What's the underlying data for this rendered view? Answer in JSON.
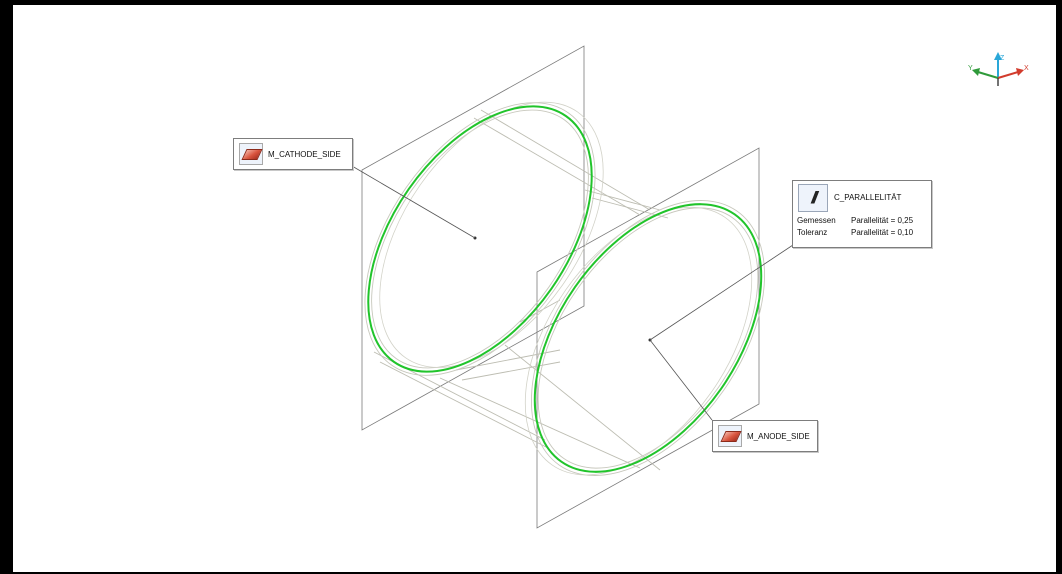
{
  "labels": {
    "cathode": "M_CATHODE_SIDE",
    "anode": "M_ANODE_SIDE",
    "constraint": {
      "name": "C_PARALLELITÄT",
      "rows": [
        {
          "key": "Gemessen",
          "value": "Parallelität = 0,25"
        },
        {
          "key": "Toleranz",
          "value": "Parallelität = 0,10"
        }
      ]
    }
  },
  "axes": {
    "x": "X",
    "y": "Y",
    "z": "Z"
  },
  "icons": {
    "measured_feature": "plane-feature-icon",
    "constraint": "parallelism-icon"
  },
  "colors": {
    "measured_circle": "#21c42b",
    "wireframe": "#b9b9ad",
    "construction": "#8a8a8a",
    "x_axis": "#d23b2c",
    "y_axis": "#2f9a3a",
    "z_axis": "#2aa7d8"
  }
}
